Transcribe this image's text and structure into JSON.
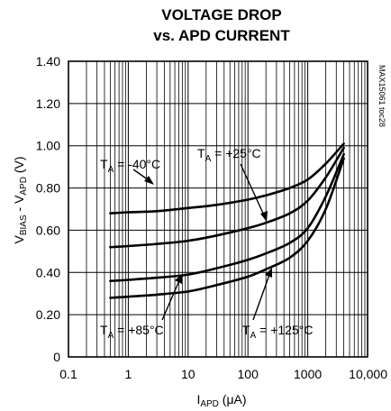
{
  "chart_data": {
    "type": "line",
    "title_line1": "VOLTAGE DROP",
    "title_line2": "vs. APD CURRENT",
    "side_code": "MAX15061 toc28",
    "xlabel": {
      "main": "I",
      "sub": "APD",
      "unit": " (μA)"
    },
    "ylabel": {
      "a": "V",
      "a_sub": "BIAS",
      "mid": " - V",
      "b_sub": "APD",
      "unit": " (V)"
    },
    "x_scale": "log",
    "xlim": [
      0.1,
      10000
    ],
    "ylim": [
      0,
      1.4
    ],
    "x_ticks": [
      0.1,
      1,
      10,
      100,
      1000,
      10000
    ],
    "x_tick_labels": [
      "0.1",
      "1",
      "10",
      "100",
      "1000",
      "10,000"
    ],
    "y_ticks": [
      0,
      0.2,
      0.4,
      0.6,
      0.8,
      1.0,
      1.2,
      1.4
    ],
    "y_tick_labels": [
      "0",
      "0.20",
      "0.40",
      "0.60",
      "0.80",
      "1.00",
      "1.20",
      "1.40"
    ],
    "grid": true,
    "series": [
      {
        "name": "T_A = -40°C",
        "x": [
          0.5,
          1,
          3,
          10,
          30,
          100,
          200,
          500,
          1000,
          2000,
          4000
        ],
        "y": [
          0.68,
          0.685,
          0.69,
          0.705,
          0.72,
          0.745,
          0.765,
          0.8,
          0.84,
          0.915,
          1.01
        ]
      },
      {
        "name": "T_A = +25°C",
        "x": [
          0.5,
          1,
          3,
          10,
          30,
          100,
          200,
          500,
          1000,
          2000,
          4000
        ],
        "y": [
          0.52,
          0.525,
          0.535,
          0.55,
          0.575,
          0.61,
          0.635,
          0.68,
          0.74,
          0.85,
          0.99
        ]
      },
      {
        "name": "T_A = +85°C",
        "x": [
          0.5,
          1,
          3,
          10,
          30,
          100,
          200,
          500,
          1000,
          2000,
          4000
        ],
        "y": [
          0.36,
          0.365,
          0.375,
          0.39,
          0.42,
          0.46,
          0.49,
          0.54,
          0.61,
          0.76,
          0.96
        ]
      },
      {
        "name": "T_A = +125°C",
        "x": [
          0.5,
          1,
          3,
          10,
          30,
          100,
          200,
          500,
          1000,
          2000,
          4000
        ],
        "y": [
          0.28,
          0.285,
          0.295,
          0.31,
          0.34,
          0.38,
          0.415,
          0.47,
          0.55,
          0.7,
          0.94
        ]
      }
    ],
    "annotations": [
      {
        "main": "T",
        "sub": "A",
        "rest": " = -40°C"
      },
      {
        "main": "T",
        "sub": "A",
        "rest": " = +25°C"
      },
      {
        "main": "T",
        "sub": "A",
        "rest": " = +85°C"
      },
      {
        "main": "T",
        "sub": "A",
        "rest": " = +125°C"
      }
    ]
  }
}
